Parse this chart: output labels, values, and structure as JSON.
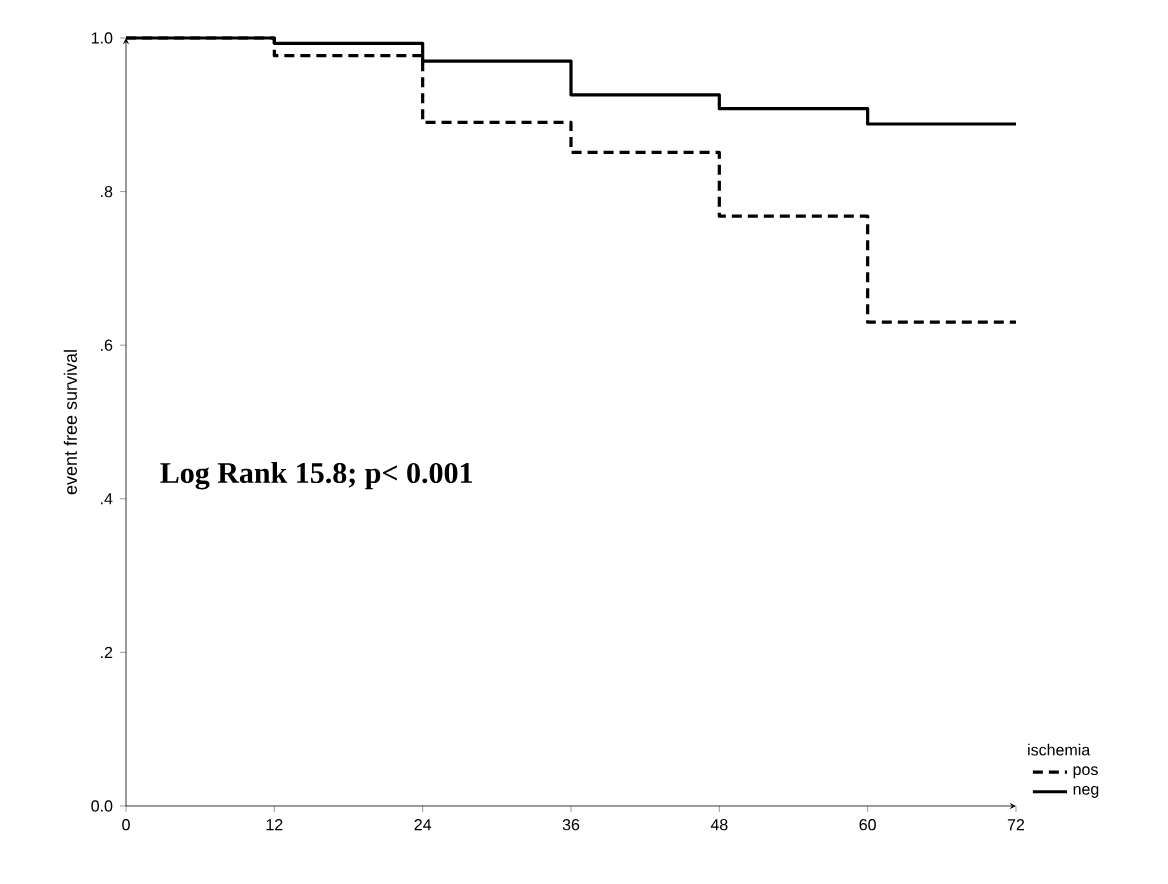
{
  "chart_data": {
    "type": "step",
    "ylabel": "event free survival",
    "legend_title": "ischemia",
    "legend": "bottom right",
    "x": [
      0,
      12,
      24,
      36,
      48,
      60,
      72
    ],
    "series": [
      {
        "name": "pos",
        "color": "#000000",
        "line_style": "dashed",
        "values": [
          1.0,
          0.977,
          0.89,
          0.851,
          0.768,
          0.63,
          0.63
        ]
      },
      {
        "name": "neg",
        "color": "#000000",
        "line_style": "solid",
        "values": [
          1.0,
          0.993,
          0.97,
          0.926,
          0.908,
          0.888,
          0.888
        ]
      }
    ],
    "xlim": [
      0,
      72
    ],
    "ylim": [
      0,
      1
    ],
    "xticks": [
      0,
      12,
      24,
      36,
      48,
      60,
      72
    ],
    "yticks": [
      {
        "value": 0,
        "label": "0.0"
      },
      {
        "value": 0.2,
        "label": ".2"
      },
      {
        "value": 0.4,
        "label": ".4"
      },
      {
        "value": 0.6,
        "label": ".6"
      },
      {
        "value": 0.8,
        "label": ".8"
      },
      {
        "value": 1,
        "label": "1.0"
      }
    ],
    "grid": false,
    "annotations": [
      "Log Rank 15.8; p< 0.001"
    ]
  }
}
